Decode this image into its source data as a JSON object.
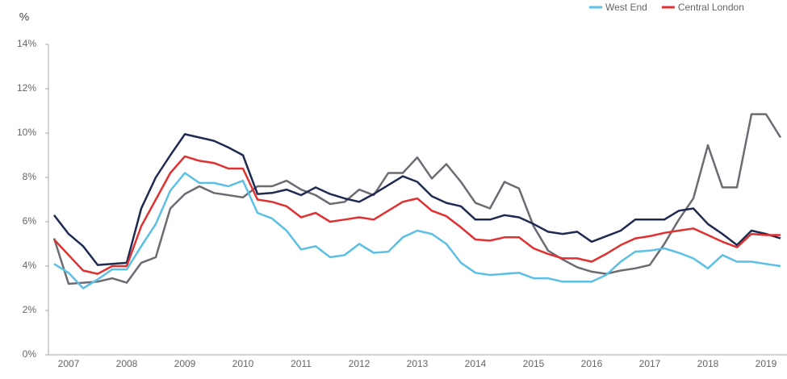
{
  "chart_data": {
    "type": "line",
    "y_label": "%",
    "categories": [
      null,
      "2007",
      null,
      null,
      null,
      "2008",
      null,
      null,
      null,
      "2009",
      null,
      null,
      null,
      "2010",
      null,
      null,
      null,
      "2011",
      null,
      null,
      null,
      "2012",
      null,
      null,
      null,
      "2013",
      null,
      null,
      null,
      "2014",
      null,
      null,
      null,
      "2015",
      null,
      null,
      null,
      "2016",
      null,
      null,
      null,
      "2017",
      null,
      null,
      null,
      "2018",
      null,
      null,
      null,
      "2019",
      null
    ],
    "ylim": [
      0,
      14
    ],
    "yticks": [
      {
        "value": 0,
        "label": "0%"
      },
      {
        "value": 2,
        "label": "2%"
      },
      {
        "value": 4,
        "label": "4%"
      },
      {
        "value": 6,
        "label": "6%"
      },
      {
        "value": 8,
        "label": "8%"
      },
      {
        "value": 10,
        "label": "10%"
      },
      {
        "value": 12,
        "label": "12%"
      },
      {
        "value": 14,
        "label": "14%"
      }
    ],
    "series": [
      {
        "color": "#6b6b73",
        "values": [
          5.25,
          3.2,
          3.25,
          3.3,
          3.45,
          3.25,
          4.15,
          4.4,
          6.6,
          7.25,
          7.6,
          7.3,
          7.2,
          7.1,
          7.6,
          7.6,
          7.85,
          7.45,
          7.2,
          6.8,
          6.9,
          7.45,
          7.2,
          8.2,
          8.2,
          8.9,
          7.95,
          8.6,
          7.8,
          6.85,
          6.6,
          7.8,
          7.5,
          5.8,
          4.7,
          4.3,
          3.95,
          3.75,
          3.65,
          3.8,
          3.9,
          4.05,
          5.0,
          6.1,
          7.05,
          9.45,
          7.55,
          7.55,
          10.85,
          10.85,
          9.8
        ]
      },
      {
        "color": "#1f2a52",
        "values": [
          6.3,
          5.45,
          4.9,
          4.05,
          4.1,
          4.15,
          6.6,
          8.0,
          9.0,
          9.95,
          9.8,
          9.65,
          9.35,
          9.0,
          7.25,
          7.3,
          7.45,
          7.2,
          7.55,
          7.25,
          7.05,
          6.9,
          7.25,
          7.65,
          8.05,
          7.8,
          7.15,
          6.85,
          6.7,
          6.1,
          6.1,
          6.3,
          6.2,
          5.9,
          5.55,
          5.45,
          5.55,
          5.1,
          5.35,
          5.6,
          6.1,
          6.1,
          6.1,
          6.5,
          6.6,
          5.9,
          5.45,
          4.95,
          5.6,
          5.45,
          5.25
        ]
      },
      {
        "name": "Central London",
        "color": "#e03030",
        "values": [
          5.2,
          4.5,
          3.8,
          3.65,
          4.0,
          4.0,
          5.8,
          7.0,
          8.2,
          8.95,
          8.75,
          8.65,
          8.4,
          8.4,
          7.0,
          6.9,
          6.7,
          6.2,
          6.4,
          6.0,
          6.1,
          6.2,
          6.1,
          6.5,
          6.9,
          7.05,
          6.5,
          6.25,
          5.75,
          5.2,
          5.15,
          5.3,
          5.3,
          4.8,
          4.55,
          4.35,
          4.35,
          4.2,
          4.55,
          4.95,
          5.25,
          5.35,
          5.5,
          5.6,
          5.7,
          5.4,
          5.1,
          4.85,
          5.45,
          5.4,
          5.4
        ]
      },
      {
        "name": "West End",
        "color": "#5bc0e6",
        "values": [
          4.1,
          3.7,
          3.0,
          3.4,
          3.85,
          3.85,
          4.9,
          5.9,
          7.4,
          8.2,
          7.75,
          7.75,
          7.6,
          7.85,
          6.4,
          6.15,
          5.6,
          4.75,
          4.9,
          4.4,
          4.5,
          5.0,
          4.6,
          4.65,
          5.3,
          5.6,
          5.45,
          5.0,
          4.15,
          3.7,
          3.6,
          3.65,
          3.7,
          3.45,
          3.45,
          3.3,
          3.3,
          3.3,
          3.6,
          4.2,
          4.65,
          4.7,
          4.8,
          4.6,
          4.35,
          3.9,
          4.5,
          4.2,
          4.2,
          4.1,
          4.0
        ]
      }
    ]
  }
}
